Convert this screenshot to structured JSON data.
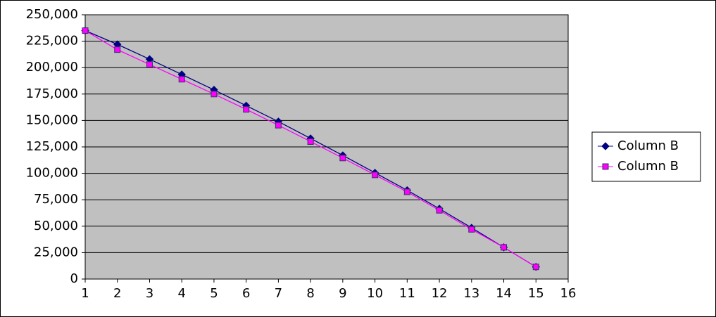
{
  "chart_data": {
    "type": "line",
    "x": [
      1,
      2,
      3,
      4,
      5,
      6,
      7,
      8,
      9,
      10,
      11,
      12,
      13,
      14,
      15
    ],
    "series": [
      {
        "name": "Column B",
        "color": "#000080",
        "marker": "diamond",
        "values": [
          235000,
          222000,
          208000,
          193500,
          179000,
          164000,
          149000,
          133000,
          117000,
          100500,
          84000,
          66500,
          48500,
          30000,
          11500
        ]
      },
      {
        "name": "Column B",
        "color": "#ff00ff",
        "marker": "square",
        "values": [
          235000,
          217000,
          203000,
          189000,
          175000,
          160500,
          145500,
          130000,
          114500,
          98500,
          82500,
          65000,
          47000,
          30000,
          11500
        ]
      }
    ],
    "xlim": [
      1,
      16
    ],
    "xticks": [
      1,
      2,
      3,
      4,
      5,
      6,
      7,
      8,
      9,
      10,
      11,
      12,
      13,
      14,
      15,
      16
    ],
    "ylim": [
      0,
      250000
    ],
    "yticks": [
      0,
      {
        "value": 25000,
        "label": "25,000"
      },
      {
        "value": 50000,
        "label": "50,000"
      },
      {
        "value": 75000,
        "label": "75,000"
      },
      {
        "value": 100000,
        "label": "100,000"
      },
      {
        "value": 125000,
        "label": "125,000"
      },
      {
        "value": 150000,
        "label": "150,000"
      },
      {
        "value": 175000,
        "label": "175,000"
      },
      {
        "value": 200000,
        "label": "200,000"
      },
      {
        "value": 225000,
        "label": "225,000"
      },
      {
        "value": 250000,
        "label": "250,000"
      }
    ],
    "grid": true,
    "plot_background": "#c0c0c0",
    "legend": "right"
  }
}
